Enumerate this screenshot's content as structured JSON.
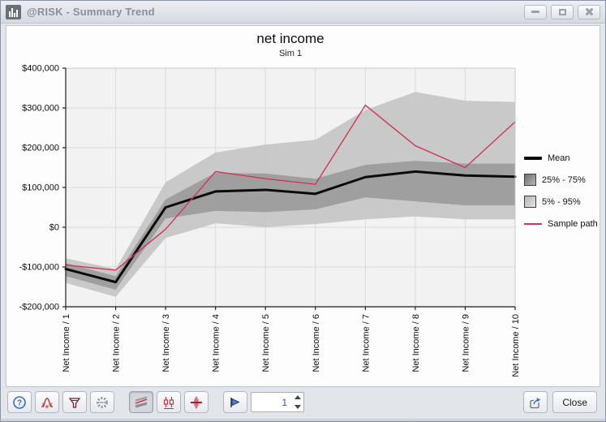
{
  "window": {
    "title": "@RISK - Summary Trend",
    "icon": "bar-chart-icon",
    "controls": [
      "minimize-icon",
      "maximize-icon",
      "close-icon"
    ]
  },
  "chart": {
    "title": "net income",
    "subtitle": "Sim 1"
  },
  "chart_data": {
    "type": "line",
    "title": "net income",
    "subtitle": "Sim 1",
    "categories": [
      "Net Income / 1",
      "Net Income / 2",
      "Net Income / 3",
      "Net Income / 4",
      "Net Income / 5",
      "Net Income / 6",
      "Net Income / 7",
      "Net Income / 8",
      "Net Income / 9",
      "Net Income / 10"
    ],
    "series": [
      {
        "name": "Mean",
        "color": "#0a0a0a",
        "width": 3,
        "values": [
          -105000,
          -138000,
          50000,
          90000,
          94000,
          84000,
          126000,
          140000,
          130000,
          127000
        ]
      },
      {
        "name": "Sample path",
        "color": "#cf3757",
        "width": 1.4,
        "values": [
          -95000,
          -108000,
          -5000,
          140000,
          122000,
          108000,
          307000,
          205000,
          150000,
          265000
        ]
      }
    ],
    "bands": [
      {
        "name": "5% - 95%",
        "color": "#c5c5c5",
        "low": [
          -140000,
          -175000,
          -27000,
          10000,
          0,
          8000,
          20000,
          27000,
          20000,
          20000
        ],
        "high": [
          -78000,
          -105000,
          113000,
          188000,
          208000,
          220000,
          295000,
          340000,
          318000,
          315000
        ]
      },
      {
        "name": "25% - 75%",
        "color": "#9b9b9b",
        "low": [
          -123000,
          -157000,
          22000,
          41000,
          38000,
          45000,
          75000,
          65000,
          55000,
          55000
        ],
        "high": [
          -90000,
          -123000,
          70000,
          137000,
          135000,
          122000,
          157000,
          167000,
          160000,
          160000
        ]
      }
    ],
    "ylim": [
      -200000,
      400000
    ],
    "yticks": [
      {
        "value": -200000,
        "label": "-$200,000"
      },
      {
        "value": -100000,
        "label": "-$100,000"
      },
      {
        "value": 0,
        "label": "$0"
      },
      {
        "value": 100000,
        "label": "$100,000"
      },
      {
        "value": 200000,
        "label": "$200,000"
      },
      {
        "value": 300000,
        "label": "$300,000"
      },
      {
        "value": 400000,
        "label": "$400,000"
      }
    ],
    "grid": true,
    "legend_position": "right"
  },
  "legend": {
    "items": [
      {
        "label": "Mean",
        "swatch": "line-black"
      },
      {
        "label": "25% - 75%",
        "swatch": "box-dark"
      },
      {
        "label": "5% - 95%",
        "swatch": "box-light"
      },
      {
        "label": "Sample path",
        "swatch": "line-red"
      }
    ]
  },
  "toolbar": {
    "icons_left": [
      "help-icon",
      "distribution-markers-icon",
      "filter-icon",
      "settings-gear-icon"
    ],
    "icons_view": [
      "trend-bands-icon",
      "box-plot-icon",
      "fan-summary-icon"
    ],
    "active_view": "trend-bands-icon",
    "step_icon": "step-sim-icon",
    "spinner": {
      "value": "1"
    },
    "export_icon": "export-icon",
    "close_label": "Close"
  }
}
